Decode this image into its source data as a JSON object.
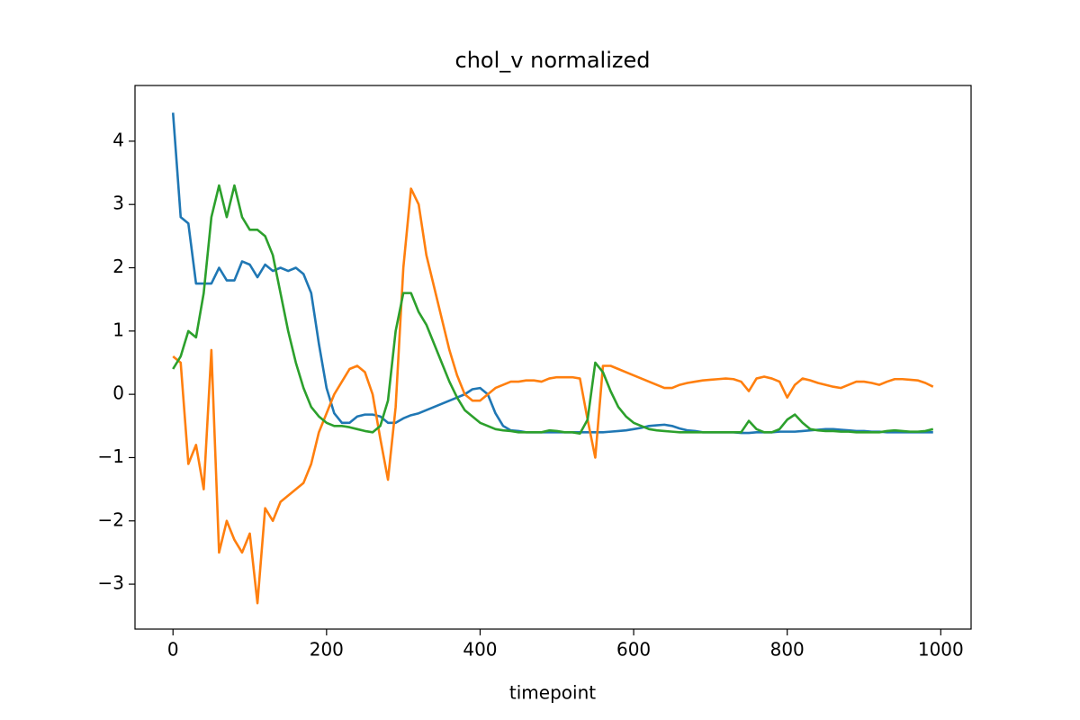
{
  "chart_data": {
    "type": "line",
    "title": "chol_v normalized",
    "x_label": "timepoint",
    "x": [
      0,
      10,
      20,
      30,
      40,
      50,
      60,
      70,
      80,
      90,
      100,
      110,
      120,
      130,
      140,
      150,
      160,
      170,
      180,
      190,
      200,
      210,
      220,
      230,
      240,
      250,
      260,
      270,
      280,
      290,
      300,
      310,
      320,
      330,
      340,
      350,
      360,
      370,
      380,
      390,
      400,
      410,
      420,
      430,
      440,
      450,
      460,
      470,
      480,
      490,
      500,
      510,
      520,
      530,
      540,
      550,
      560,
      570,
      580,
      590,
      600,
      610,
      620,
      630,
      640,
      650,
      660,
      670,
      680,
      690,
      700,
      710,
      720,
      730,
      740,
      750,
      760,
      770,
      780,
      790,
      800,
      810,
      820,
      830,
      840,
      850,
      860,
      870,
      880,
      890,
      900,
      910,
      920,
      930,
      940,
      950,
      960,
      970,
      980,
      990
    ],
    "series": [
      {
        "color": "#1f77b4",
        "values": [
          4.45,
          2.8,
          2.7,
          1.75,
          1.75,
          1.75,
          2.0,
          1.8,
          1.8,
          2.1,
          2.05,
          1.85,
          2.05,
          1.95,
          2.0,
          1.95,
          2.0,
          1.9,
          1.6,
          0.8,
          0.1,
          -0.3,
          -0.45,
          -0.45,
          -0.35,
          -0.32,
          -0.32,
          -0.35,
          -0.45,
          -0.45,
          -0.38,
          -0.33,
          -0.3,
          -0.25,
          -0.2,
          -0.15,
          -0.1,
          -0.05,
          0.0,
          0.08,
          0.1,
          0.0,
          -0.3,
          -0.5,
          -0.57,
          -0.58,
          -0.6,
          -0.6,
          -0.6,
          -0.6,
          -0.6,
          -0.6,
          -0.6,
          -0.6,
          -0.6,
          -0.6,
          -0.6,
          -0.59,
          -0.58,
          -0.57,
          -0.55,
          -0.53,
          -0.5,
          -0.49,
          -0.48,
          -0.5,
          -0.54,
          -0.57,
          -0.58,
          -0.6,
          -0.6,
          -0.6,
          -0.6,
          -0.6,
          -0.61,
          -0.61,
          -0.6,
          -0.6,
          -0.6,
          -0.59,
          -0.59,
          -0.59,
          -0.58,
          -0.57,
          -0.56,
          -0.55,
          -0.55,
          -0.56,
          -0.57,
          -0.58,
          -0.58,
          -0.59,
          -0.59,
          -0.6,
          -0.6,
          -0.6,
          -0.6,
          -0.6,
          -0.6,
          -0.6
        ]
      },
      {
        "color": "#ff7f0e",
        "values": [
          0.6,
          0.5,
          -1.1,
          -0.8,
          -1.5,
          0.7,
          -2.5,
          -2.0,
          -2.3,
          -2.5,
          -2.2,
          -3.3,
          -1.8,
          -2.0,
          -1.7,
          -1.6,
          -1.5,
          -1.4,
          -1.1,
          -0.6,
          -0.3,
          0.0,
          0.2,
          0.4,
          0.45,
          0.35,
          0.0,
          -0.7,
          -1.35,
          -0.2,
          2.0,
          3.25,
          3.0,
          2.2,
          1.7,
          1.2,
          0.7,
          0.3,
          0.0,
          -0.1,
          -0.1,
          0.0,
          0.1,
          0.15,
          0.2,
          0.2,
          0.22,
          0.22,
          0.2,
          0.25,
          0.27,
          0.27,
          0.27,
          0.25,
          -0.4,
          -1.0,
          0.45,
          0.45,
          0.4,
          0.35,
          0.3,
          0.25,
          0.2,
          0.15,
          0.1,
          0.1,
          0.15,
          0.18,
          0.2,
          0.22,
          0.23,
          0.24,
          0.25,
          0.24,
          0.2,
          0.05,
          0.25,
          0.28,
          0.25,
          0.2,
          -0.05,
          0.15,
          0.25,
          0.22,
          0.18,
          0.15,
          0.12,
          0.1,
          0.15,
          0.2,
          0.2,
          0.18,
          0.15,
          0.2,
          0.24,
          0.24,
          0.23,
          0.22,
          0.18,
          0.12
        ]
      },
      {
        "color": "#2ca02c",
        "values": [
          0.4,
          0.6,
          1.0,
          0.9,
          1.6,
          2.8,
          3.3,
          2.8,
          3.3,
          2.8,
          2.6,
          2.6,
          2.5,
          2.2,
          1.6,
          1.0,
          0.5,
          0.1,
          -0.2,
          -0.35,
          -0.45,
          -0.5,
          -0.5,
          -0.52,
          -0.55,
          -0.58,
          -0.6,
          -0.5,
          -0.1,
          1.0,
          1.6,
          1.6,
          1.3,
          1.1,
          0.8,
          0.5,
          0.2,
          -0.05,
          -0.25,
          -0.35,
          -0.45,
          -0.5,
          -0.55,
          -0.57,
          -0.58,
          -0.6,
          -0.6,
          -0.6,
          -0.6,
          -0.57,
          -0.58,
          -0.6,
          -0.6,
          -0.62,
          -0.4,
          0.5,
          0.35,
          0.05,
          -0.2,
          -0.35,
          -0.45,
          -0.5,
          -0.55,
          -0.57,
          -0.58,
          -0.59,
          -0.6,
          -0.6,
          -0.6,
          -0.6,
          -0.6,
          -0.6,
          -0.6,
          -0.6,
          -0.6,
          -0.42,
          -0.55,
          -0.6,
          -0.6,
          -0.55,
          -0.4,
          -0.32,
          -0.45,
          -0.55,
          -0.57,
          -0.58,
          -0.58,
          -0.59,
          -0.59,
          -0.6,
          -0.6,
          -0.6,
          -0.6,
          -0.58,
          -0.57,
          -0.58,
          -0.59,
          -0.59,
          -0.58,
          -0.55
        ]
      }
    ],
    "xlim": [
      -49.5,
      1039.5
    ],
    "xticks": [
      0,
      200,
      400,
      600,
      800,
      1000
    ],
    "ylim": [
      -3.71,
      4.88
    ],
    "yticks": [
      {
        "value": -3,
        "label": "−3"
      },
      {
        "value": -2,
        "label": "−2"
      },
      {
        "value": -1,
        "label": "−1"
      },
      0,
      1,
      2,
      3,
      4
    ],
    "grid": false
  }
}
